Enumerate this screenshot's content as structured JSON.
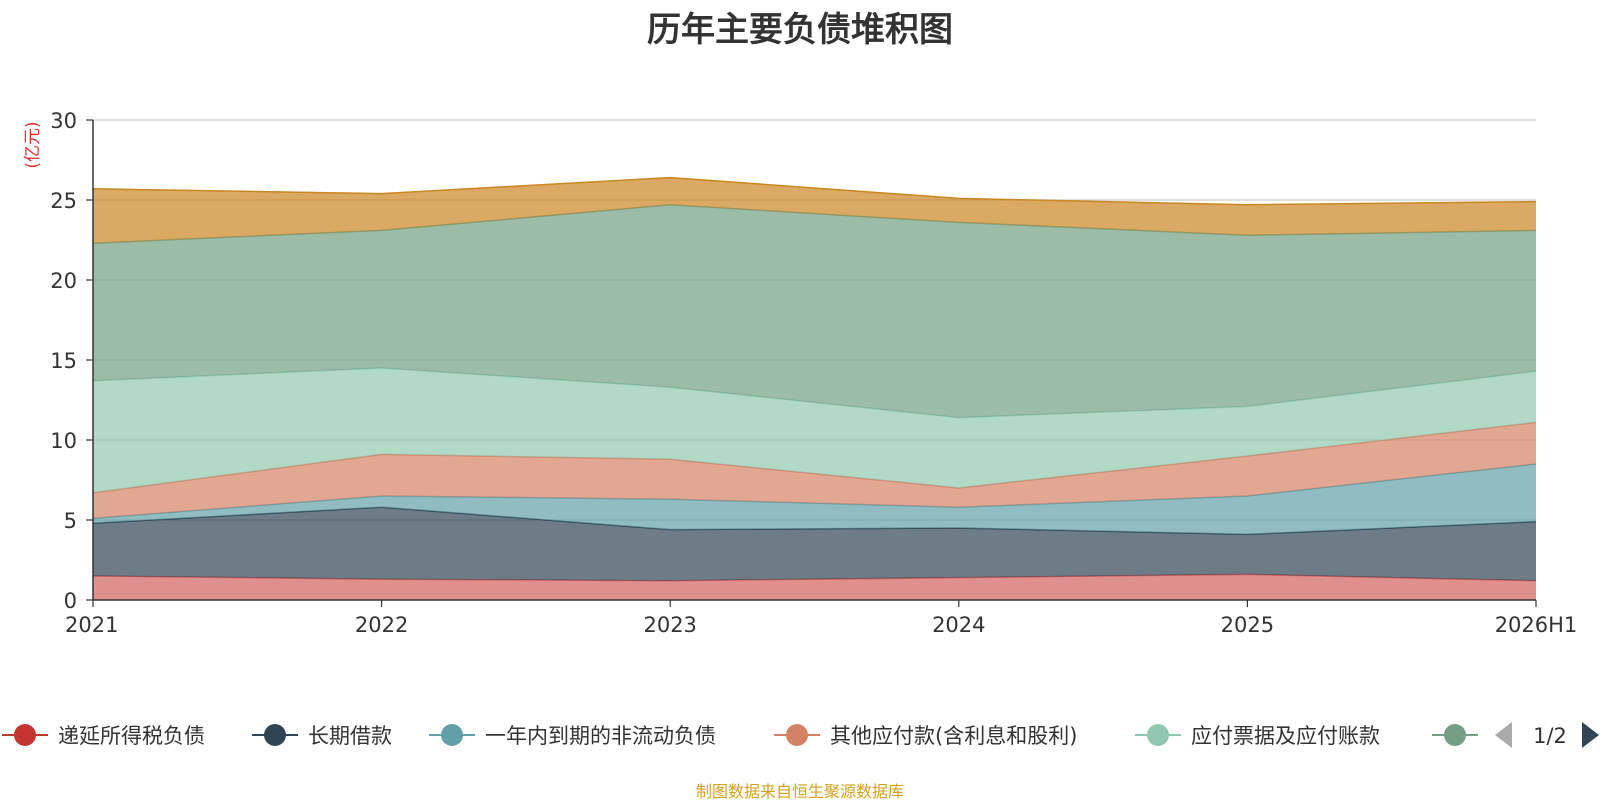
{
  "chart_data": {
    "type": "area",
    "stacked": true,
    "title": "历年主要负债堆积图",
    "unit_label": "(亿元)",
    "categories": [
      "2021",
      "2022",
      "2023",
      "2024",
      "2025",
      "2026H1"
    ],
    "ylim": [
      0,
      30
    ],
    "yticks": [
      "0",
      "5",
      "10",
      "15",
      "20",
      "25",
      "30"
    ],
    "grid": true,
    "series": [
      {
        "name": "递延所得税负债",
        "color": "#d0605e",
        "values": [
          1.5,
          1.3,
          1.2,
          1.4,
          1.6,
          1.2
        ]
      },
      {
        "name": "长期借款",
        "color": "#2f4554",
        "values": [
          3.3,
          4.5,
          3.2,
          3.1,
          2.5,
          3.7
        ]
      },
      {
        "name": "一年内到期的非流动负债",
        "color": "#61a0a8",
        "values": [
          0.3,
          0.7,
          1.9,
          1.3,
          2.4,
          3.6
        ]
      },
      {
        "name": "其他应付款(含利息和股利)",
        "color": "#d48265",
        "values": [
          1.6,
          2.6,
          2.5,
          1.2,
          2.5,
          2.6
        ]
      },
      {
        "name": "应付票据及应付账款",
        "color": "#91c7ae",
        "values": [
          7.0,
          5.4,
          4.5,
          4.4,
          3.1,
          3.2
        ]
      },
      {
        "name": "",
        "color": "#749f83",
        "values": [
          8.6,
          8.6,
          11.4,
          12.2,
          10.7,
          8.8
        ]
      },
      {
        "name": "",
        "color": "#ca8622",
        "values": [
          3.4,
          2.3,
          1.7,
          1.5,
          1.9,
          1.8
        ]
      }
    ]
  },
  "legend": {
    "items": [
      {
        "label": "递延所得税负债",
        "color": "#c23531"
      },
      {
        "label": "长期借款",
        "color": "#2f4554"
      },
      {
        "label": "一年内到期的非流动负债",
        "color": "#61a0a8"
      },
      {
        "label": "其他应付款(含利息和股利)",
        "color": "#d48265"
      },
      {
        "label": "应付票据及应付账款",
        "color": "#91c7ae"
      },
      {
        "label": "",
        "color": "#749f83"
      }
    ],
    "page": "1/2",
    "prev_icon": "triangle-left-icon",
    "next_icon": "triangle-right-icon",
    "prev_color": "#aaaaaa",
    "next_color": "#2f4554"
  },
  "source_note": "制图数据来自恒生聚源数据库"
}
